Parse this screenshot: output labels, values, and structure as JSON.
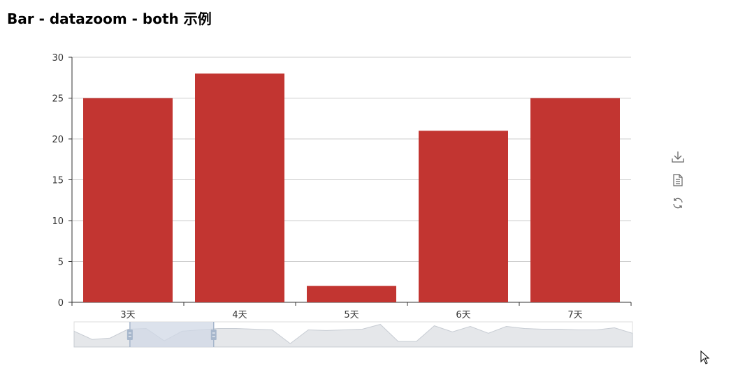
{
  "title": "Bar - datazoom - both 示例",
  "chart_data": {
    "type": "bar",
    "categories": [
      "3天",
      "4天",
      "5天",
      "6天",
      "7天"
    ],
    "series": [
      {
        "values": [
          25,
          28,
          2,
          21,
          25
        ],
        "color": "#c23531"
      }
    ],
    "ylim": [
      0,
      30
    ],
    "yticks": [
      0,
      5,
      10,
      15,
      20,
      25,
      30
    ],
    "grid": true,
    "datazoom": {
      "overview_values": [
        23,
        11,
        13,
        26,
        27,
        9,
        23,
        25,
        27,
        27,
        26,
        25,
        5,
        25,
        24,
        25,
        26,
        33,
        8,
        8,
        31,
        22,
        30,
        20,
        30,
        27,
        26,
        26,
        25,
        25,
        28,
        20
      ],
      "start_fraction": 0.1,
      "end_fraction": 0.25
    }
  },
  "toolbox": {
    "items": [
      {
        "name": "save-image-icon"
      },
      {
        "name": "data-view-icon"
      },
      {
        "name": "restore-icon"
      }
    ]
  },
  "colors": {
    "bar": "#c23531",
    "grid": "#cccccc",
    "axis": "#333333",
    "zoom_fill": "#d0d8e5",
    "zoom_handle": "#a7b7cc",
    "overview_area": "#e5e7ea"
  }
}
